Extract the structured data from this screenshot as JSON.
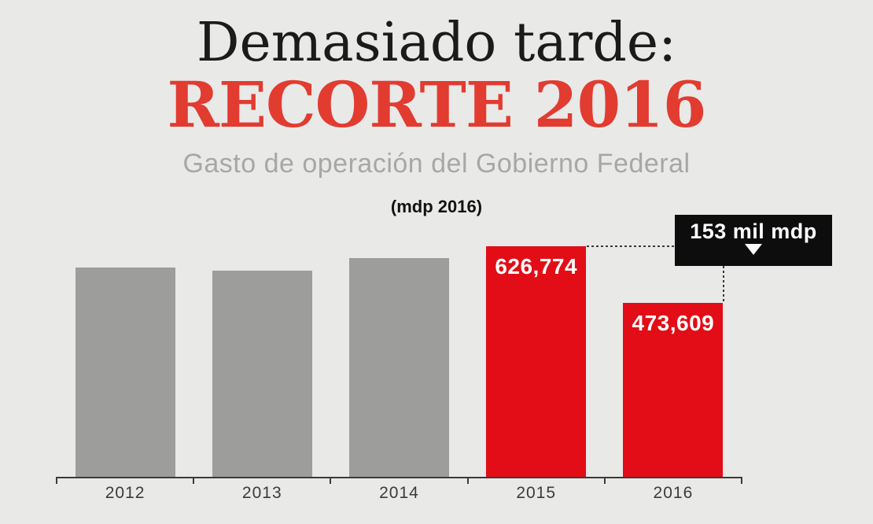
{
  "header": {
    "title_line1": "Demasiado tarde:",
    "title_line2": "RECORTE 2016",
    "subtitle": "Gasto de operación del Gobierno Federal",
    "unit_note": "(mdp 2016)"
  },
  "callout": {
    "label": "153 mil mdp"
  },
  "colors": {
    "background": "#e9e9e8",
    "title_black": "#1b1b19",
    "title_red": "#e23b30",
    "subtitle_gray": "#a8a7a6",
    "unit_black": "#121212",
    "bar_gray": "#9d9d9c",
    "bar_red": "#e20d16",
    "bar_label_white": "#ffffff",
    "axis": "#3b3b3a",
    "year_label": "#3b3b3a",
    "callout_bg": "#0d0d0d",
    "callout_text": "#ffffff",
    "dotted": "#3a3a3a"
  },
  "chart_data": {
    "type": "bar",
    "title": "Demasiado tarde: RECORTE 2016",
    "subtitle": "Gasto de operación del Gobierno Federal",
    "unit": "mdp 2016",
    "categories": [
      "2012",
      "2013",
      "2014",
      "2015",
      "2016"
    ],
    "values": [
      569000,
      560000,
      594000,
      626774,
      473609
    ],
    "value_labels": [
      null,
      null,
      null,
      "626,774",
      "473,609"
    ],
    "estimated_values": [
      true,
      true,
      true,
      false,
      false
    ],
    "bar_palette": [
      "gray",
      "gray",
      "gray",
      "red",
      "red"
    ],
    "annotation": {
      "text": "153 mil mdp",
      "from_category": "2015",
      "to_category": "2016"
    },
    "ylim": [
      0,
      650000
    ],
    "grid": false,
    "legend": false
  }
}
